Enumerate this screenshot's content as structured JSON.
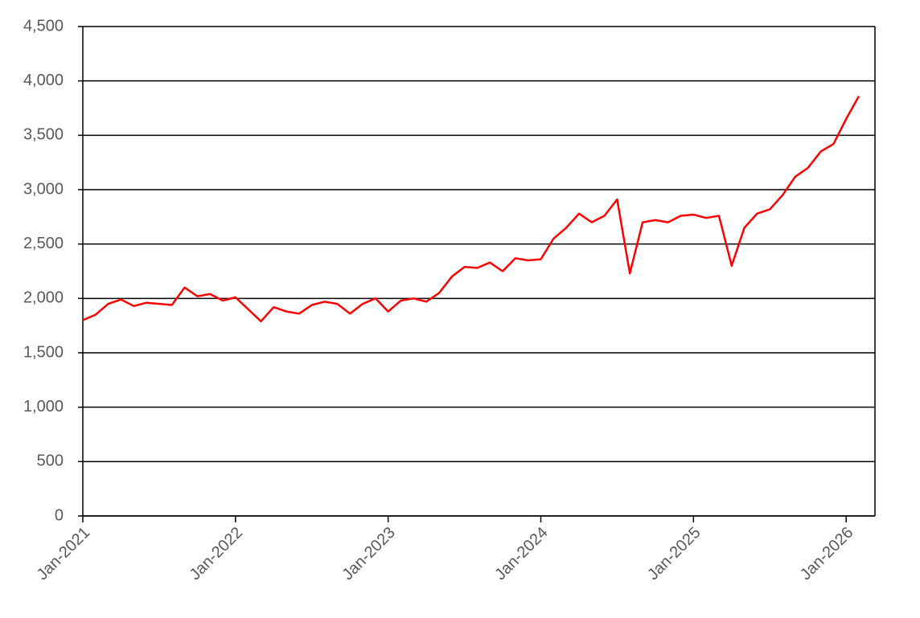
{
  "chart_data": {
    "type": "line",
    "x": [
      "Jan-2021",
      "Feb-2021",
      "Mar-2021",
      "Apr-2021",
      "May-2021",
      "Jun-2021",
      "Jul-2021",
      "Aug-2021",
      "Sep-2021",
      "Oct-2021",
      "Nov-2021",
      "Dec-2021",
      "Jan-2022",
      "Feb-2022",
      "Mar-2022",
      "Apr-2022",
      "May-2022",
      "Jun-2022",
      "Jul-2022",
      "Aug-2022",
      "Sep-2022",
      "Oct-2022",
      "Nov-2022",
      "Dec-2022",
      "Jan-2023",
      "Feb-2023",
      "Mar-2023",
      "Apr-2023",
      "May-2023",
      "Jun-2023",
      "Jul-2023",
      "Aug-2023",
      "Sep-2023",
      "Oct-2023",
      "Nov-2023",
      "Dec-2023",
      "Jan-2024",
      "Feb-2024",
      "Mar-2024",
      "Apr-2024",
      "May-2024",
      "Jun-2024",
      "Jul-2024",
      "Aug-2024",
      "Sep-2024",
      "Oct-2024",
      "Nov-2024",
      "Dec-2024",
      "Jan-2025",
      "Feb-2025",
      "Mar-2025",
      "Apr-2025",
      "May-2025",
      "Jun-2025",
      "Jul-2025",
      "Aug-2025",
      "Sep-2025",
      "Oct-2025",
      "Nov-2025",
      "Dec-2025",
      "Jan-2026",
      "Feb-2026"
    ],
    "series": [
      {
        "color": "#ff0000",
        "values": [
          1800,
          1850,
          1950,
          1990,
          1930,
          1960,
          1950,
          1940,
          2100,
          2020,
          2040,
          1980,
          2010,
          1900,
          1790,
          1920,
          1880,
          1860,
          1940,
          1970,
          1950,
          1860,
          1950,
          2000,
          1880,
          1980,
          2000,
          1970,
          2050,
          2200,
          2290,
          2280,
          2330,
          2250,
          2370,
          2350,
          2360,
          2550,
          2650,
          2780,
          2700,
          2760,
          2910,
          2230,
          2700,
          2720,
          2700,
          2760,
          2770,
          2740,
          2760,
          2300,
          2650,
          2780,
          2820,
          2950,
          3120,
          3200,
          3350,
          3420,
          3650,
          3860
        ]
      }
    ],
    "xlim": [
      "Jan-2021",
      "Feb-2026"
    ],
    "xticks": [
      "Jan-2021",
      "Jan-2022",
      "Jan-2023",
      "Jan-2024",
      "Jan-2025",
      "Jan-2026"
    ],
    "ylim": [
      0,
      4500
    ],
    "yticks": [
      0,
      {
        "value": 500,
        "label": "500"
      },
      {
        "value": 1000,
        "label": "1,000"
      },
      {
        "value": 1500,
        "label": "1,500"
      },
      {
        "value": 2000,
        "label": "2,000"
      },
      {
        "value": 2500,
        "label": "2,500"
      },
      {
        "value": 3000,
        "label": "3,000"
      },
      {
        "value": 3500,
        "label": "3,500"
      },
      {
        "value": 4000,
        "label": "4,000"
      },
      {
        "value": 4500,
        "label": "4,500"
      }
    ],
    "grid": true
  }
}
